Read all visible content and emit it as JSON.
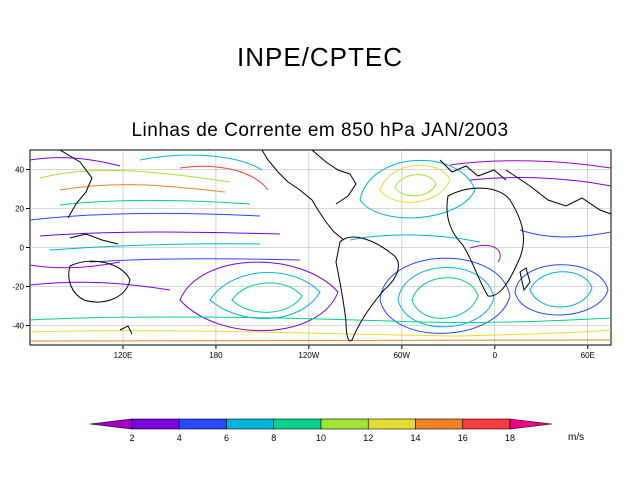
{
  "header": {
    "organization": "INPE/CPTEC",
    "title": "Linhas de Corrente em 850 hPa JAN/2003"
  },
  "map": {
    "lat_ticks": [
      {
        "value": 40,
        "label": "40"
      },
      {
        "value": 20,
        "label": "20"
      },
      {
        "value": 0,
        "label": "0"
      },
      {
        "value": -20,
        "label": "-20"
      },
      {
        "value": -40,
        "label": "-40"
      }
    ],
    "lon_ticks": [
      {
        "value": 120,
        "label": "120E"
      },
      {
        "value": 180,
        "label": "180"
      },
      {
        "value": 240,
        "label": "120W"
      },
      {
        "value": 300,
        "label": "60W"
      },
      {
        "value": 360,
        "label": "0"
      },
      {
        "value": 420,
        "label": "60E"
      }
    ],
    "lat_range": [
      -50,
      50
    ],
    "lon_range": [
      60,
      435
    ]
  },
  "colorbar": {
    "labels": [
      "2",
      "4",
      "6",
      "8",
      "10",
      "12",
      "14",
      "16",
      "18"
    ],
    "colors": [
      "#a000c8",
      "#7a00e0",
      "#2848ff",
      "#00b4dc",
      "#00d28c",
      "#a0e632",
      "#e6dc32",
      "#f08228",
      "#fa3c3c",
      "#f00082"
    ],
    "unit": "m/s"
  }
}
